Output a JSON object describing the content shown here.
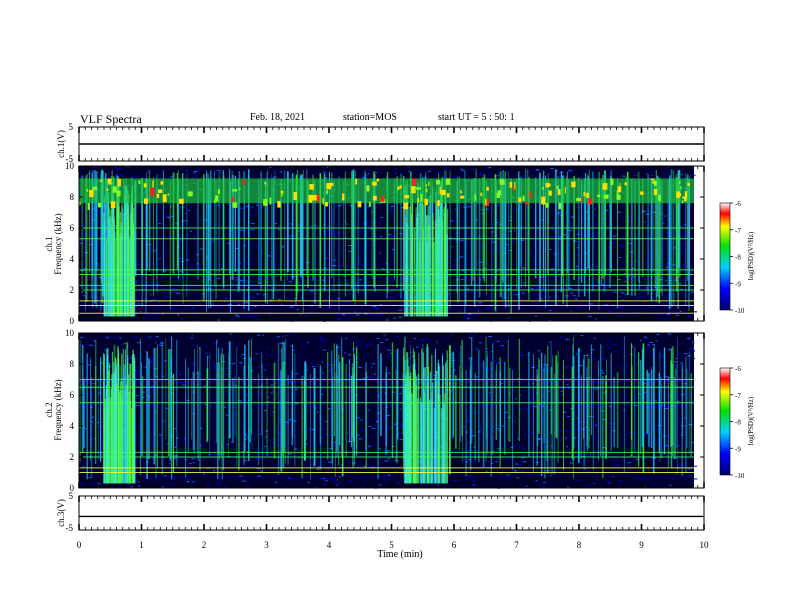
{
  "header": {
    "title": "VLF Spectra",
    "date": "Feb. 18, 2021",
    "station": "station=MOS",
    "start": "start  UT =   5 : 50: 1"
  },
  "chart_data": [
    {
      "type": "line",
      "panel": "ch.1(V)",
      "ylabel": "ch.1(V)",
      "ylim": [
        -5,
        5
      ],
      "yticks": [
        "5",
        "-5"
      ],
      "x": [
        0,
        10
      ],
      "values": [
        0,
        0
      ]
    },
    {
      "type": "heatmap",
      "panel": "ch.1 spectrogram",
      "ylabel": [
        "ch.1",
        "Frequency  (kHz)"
      ],
      "ylim": [
        0,
        10
      ],
      "yticks": [
        "0",
        "2",
        "4",
        "6",
        "8",
        "10"
      ],
      "xlim": [
        0,
        10
      ],
      "colorbar": {
        "label": "log(PSD)(V²/Hz)",
        "range": [
          -10,
          -6
        ],
        "ticks": [
          "-6",
          "-7",
          "-8",
          "-9",
          "-10"
        ]
      },
      "features": {
        "persistent_line_kHz": [
          0.5,
          1.0,
          1.3,
          2.0,
          2.3,
          3.0,
          3.3,
          5.3,
          6.0
        ],
        "active_band_kHz": [
          7.6,
          9.2
        ],
        "active_intervals_min": [
          [
            0.4,
            0.9
          ],
          [
            5.2,
            5.9
          ]
        ]
      }
    },
    {
      "type": "heatmap",
      "panel": "ch.2 spectrogram",
      "ylabel": [
        "ch.2",
        "Frequency  (kHz)"
      ],
      "ylim": [
        0,
        10
      ],
      "yticks": [
        "0",
        "2",
        "4",
        "6",
        "8",
        "10"
      ],
      "xlim": [
        0,
        10
      ],
      "colorbar": {
        "label": "log(PSD)(V²/Hz)",
        "range": [
          -10,
          -6
        ],
        "ticks": [
          "-6",
          "-7",
          "-8",
          "-9",
          "-10"
        ]
      },
      "features": {
        "persistent_line_kHz": [
          1.0,
          1.3,
          2.0,
          2.3,
          5.5,
          6.5,
          7.0
        ],
        "active_intervals_min": [
          [
            0.4,
            0.9
          ],
          [
            5.2,
            5.9
          ]
        ]
      }
    },
    {
      "type": "line",
      "panel": "ch.3(V)",
      "ylabel": "ch.3(V)",
      "ylim": [
        -5,
        5
      ],
      "yticks": [
        "5",
        "-5"
      ],
      "x": [
        0,
        10
      ],
      "values": [
        -1,
        -1
      ]
    }
  ],
  "xaxis": {
    "label": "Time  (min)",
    "ticks": [
      "0",
      "1",
      "2",
      "3",
      "4",
      "5",
      "6",
      "7",
      "8",
      "9",
      "10"
    ]
  },
  "colors": {
    "axis": "#000000",
    "background": "#ffffff"
  }
}
